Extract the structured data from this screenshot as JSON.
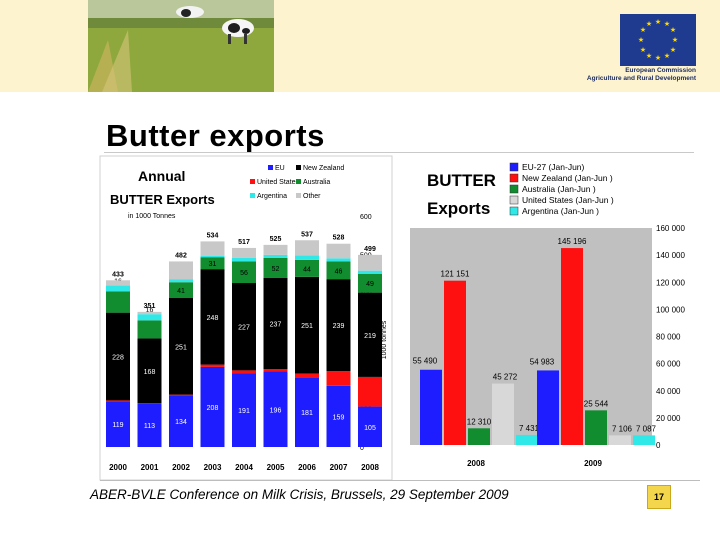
{
  "slide": {
    "title": "Butter exports",
    "footer": "ABER-BVLE Conference on Milk Crisis, Brussels, 29 September 2009",
    "slide_number": "17",
    "eu_logo_text": [
      "European Commission",
      "Agriculture and Rural Development"
    ]
  },
  "chart_data": [
    {
      "type": "bar",
      "stacked": true,
      "title": "Annual BUTTER Exports",
      "subtitle": "in 1000 Tonnes",
      "ylabel": "1000 tonnes",
      "ylim": [
        0,
        600
      ],
      "yticks": [
        0,
        100,
        200,
        300,
        400,
        500,
        600
      ],
      "legend_position": "top-right",
      "categories": [
        "2000",
        "2001",
        "2002",
        "2003",
        "2004",
        "2005",
        "2006",
        "2007",
        "2008"
      ],
      "totals": [
        433,
        351,
        482,
        534,
        517,
        525,
        537,
        528,
        499
      ],
      "series": [
        {
          "name": "EU",
          "color": "#1d1dff",
          "values": [
            119,
            113,
            134,
            208,
            191,
            196,
            181,
            159,
            105
          ]
        },
        {
          "name": "United States",
          "color": "#ff1010",
          "values": [
            2,
            1,
            2,
            6,
            8,
            6,
            10,
            38,
            77
          ]
        },
        {
          "name": "New Zealand",
          "color": "#000000",
          "values": [
            228,
            168,
            251,
            248,
            227,
            237,
            251,
            239,
            219
          ]
        },
        {
          "name": "Australia",
          "color": "#118c2f",
          "values": [
            55,
            47,
            41,
            31,
            56,
            52,
            44,
            46,
            49
          ]
        },
        {
          "name": "Argentina",
          "color": "#2fe8e8",
          "values": [
            16,
            16,
            8,
            4,
            9,
            8,
            12,
            8,
            8
          ]
        },
        {
          "name": "Other",
          "color": "#c8c8c8",
          "values": [
            13,
            6,
            46,
            37,
            26,
            26,
            39,
            38,
            41
          ]
        }
      ],
      "data_labels": {
        "EU": [
          "119",
          "113",
          "134",
          "208",
          "191",
          "196",
          "181",
          "159",
          "105"
        ],
        "New Zealand": [
          "228",
          "168",
          "251",
          "248",
          "227",
          "237",
          "251",
          "239",
          "219"
        ],
        "Australia": [
          "",
          "",
          "41",
          "31",
          "56",
          "52",
          "44",
          "46",
          "49"
        ],
        "Argentina": [
          "16",
          "16",
          "",
          "",
          "",
          "",
          "",
          "",
          ""
        ]
      }
    },
    {
      "type": "bar",
      "title": "BUTTER Exports",
      "ylim": [
        0,
        160000
      ],
      "yticks": [
        "0",
        "20 000",
        "40 000",
        "60 000",
        "80 000",
        "100 000",
        "120 000",
        "140 000",
        "160 000"
      ],
      "ytick_values": [
        0,
        20000,
        40000,
        60000,
        80000,
        100000,
        120000,
        140000,
        160000
      ],
      "legend_position": "top",
      "categories": [
        "2008",
        "2009"
      ],
      "series": [
        {
          "name": "EU-27 (Jan-Jun)",
          "color": "#1d1dff",
          "values": [
            55490,
            54983
          ],
          "labels": [
            "55 490",
            "54 983"
          ]
        },
        {
          "name": "New Zealand (Jan-Jun )",
          "color": "#ff1010",
          "values": [
            121151,
            145196
          ],
          "labels": [
            "121 151",
            "145 196"
          ]
        },
        {
          "name": "Australia (Jan-Jun )",
          "color": "#118c2f",
          "values": [
            12310,
            25544
          ],
          "labels": [
            "12 310",
            "25 544"
          ]
        },
        {
          "name": "United States (Jan-Jun )",
          "color": "#d8d8d8",
          "values": [
            45272,
            7106
          ],
          "labels": [
            "45 272",
            "7 106"
          ]
        },
        {
          "name": "Argentina (Jan-Jun )",
          "color": "#2fe8e8",
          "values": [
            7431,
            7087
          ],
          "labels": [
            "7 431",
            "7 087"
          ]
        }
      ]
    }
  ]
}
